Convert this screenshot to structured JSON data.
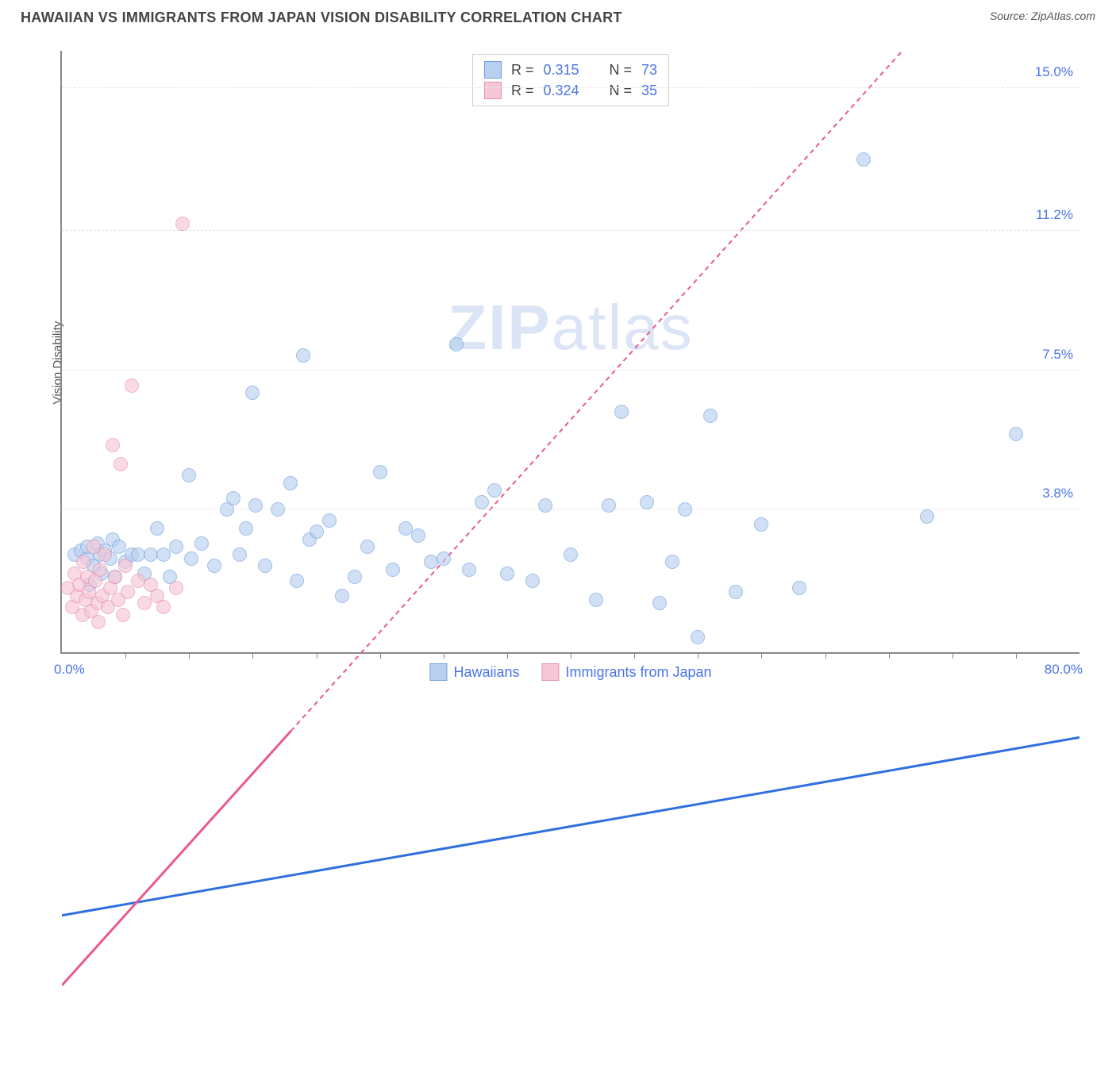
{
  "title": "HAWAIIAN VS IMMIGRANTS FROM JAPAN VISION DISABILITY CORRELATION CHART",
  "source_prefix": "Source: ",
  "source_name": "ZipAtlas.com",
  "y_axis_label": "Vision Disability",
  "watermark_bold": "ZIP",
  "watermark_rest": "atlas",
  "chart": {
    "type": "scatter",
    "background_color": "#ffffff",
    "grid_color": "#e5e5e5",
    "axis_color": "#888888",
    "xlim": [
      0,
      80
    ],
    "ylim": [
      0,
      16
    ],
    "x_range_labels": [
      "0.0%",
      "80.0%"
    ],
    "y_ticks": [
      {
        "v": 3.8,
        "label": "3.8%"
      },
      {
        "v": 7.5,
        "label": "7.5%"
      },
      {
        "v": 11.2,
        "label": "11.2%"
      },
      {
        "v": 15.0,
        "label": "15.0%"
      }
    ],
    "x_minor_ticks": [
      5,
      10,
      15,
      20,
      25,
      30,
      35,
      40,
      45,
      50,
      55,
      60,
      65,
      70,
      75
    ],
    "y_label_color": "#4a74e8",
    "label_fontsize": 17,
    "marker_radius": 9,
    "marker_stroke_width": 1.5,
    "series": [
      {
        "name": "Hawaiians",
        "fill": "#b9d0f0",
        "stroke": "#6f9fde",
        "fill_opacity": 0.65,
        "R": "0.315",
        "N": "73",
        "trend": {
          "x1": 0,
          "y1": 2.4,
          "x2": 80,
          "y2": 5.2,
          "extend_x2": 80,
          "extend_y2": 5.2,
          "color": "#2f6fe0",
          "width": 3,
          "dash": "none"
        },
        "points": [
          [
            1,
            2.6
          ],
          [
            1.5,
            2.7
          ],
          [
            2,
            2.5
          ],
          [
            2,
            2.8
          ],
          [
            2.2,
            1.8
          ],
          [
            2.5,
            2.3
          ],
          [
            2.8,
            2.9
          ],
          [
            3,
            2.6
          ],
          [
            3.1,
            2.1
          ],
          [
            3.4,
            2.7
          ],
          [
            3.8,
            2.5
          ],
          [
            4,
            3.0
          ],
          [
            4.2,
            2.0
          ],
          [
            4.5,
            2.8
          ],
          [
            5,
            2.4
          ],
          [
            5.5,
            2.6
          ],
          [
            6,
            2.6
          ],
          [
            6.5,
            2.1
          ],
          [
            7,
            2.6
          ],
          [
            7.5,
            3.3
          ],
          [
            8,
            2.6
          ],
          [
            8.5,
            2.0
          ],
          [
            9,
            2.8
          ],
          [
            10,
            4.7
          ],
          [
            10.2,
            2.5
          ],
          [
            11,
            2.9
          ],
          [
            12,
            2.3
          ],
          [
            13,
            3.8
          ],
          [
            13.5,
            4.1
          ],
          [
            14,
            2.6
          ],
          [
            14.5,
            3.3
          ],
          [
            15,
            6.9
          ],
          [
            15.2,
            3.9
          ],
          [
            16,
            2.3
          ],
          [
            17,
            3.8
          ],
          [
            18,
            4.5
          ],
          [
            18.5,
            1.9
          ],
          [
            19,
            7.9
          ],
          [
            19.5,
            3.0
          ],
          [
            20,
            3.2
          ],
          [
            21,
            3.5
          ],
          [
            22,
            1.5
          ],
          [
            23,
            2.0
          ],
          [
            24,
            2.8
          ],
          [
            25,
            4.8
          ],
          [
            26,
            2.2
          ],
          [
            27,
            3.3
          ],
          [
            28,
            3.1
          ],
          [
            29,
            2.4
          ],
          [
            30,
            2.5
          ],
          [
            31,
            8.2
          ],
          [
            32,
            2.2
          ],
          [
            33,
            4.0
          ],
          [
            34,
            4.3
          ],
          [
            35,
            2.1
          ],
          [
            37,
            1.9
          ],
          [
            38,
            3.9
          ],
          [
            40,
            2.6
          ],
          [
            42,
            1.4
          ],
          [
            43,
            3.9
          ],
          [
            44,
            6.4
          ],
          [
            46,
            4.0
          ],
          [
            47,
            1.3
          ],
          [
            48,
            2.4
          ],
          [
            49,
            3.8
          ],
          [
            50,
            0.4
          ],
          [
            51,
            6.3
          ],
          [
            53,
            1.6
          ],
          [
            55,
            3.4
          ],
          [
            58,
            1.7
          ],
          [
            63,
            13.1
          ],
          [
            68,
            3.6
          ],
          [
            75,
            5.8
          ]
        ]
      },
      {
        "name": "Immigrants from Japan",
        "fill": "#f6c7d5",
        "stroke": "#e88fad",
        "fill_opacity": 0.65,
        "R": "0.324",
        "N": "35",
        "trend": {
          "x1": 0,
          "y1": 1.3,
          "x2": 18,
          "y2": 5.3,
          "extend_x2": 80,
          "extend_y2": 19.1,
          "color": "#e85b8a",
          "width": 3,
          "dash": "6,5"
        },
        "points": [
          [
            0.5,
            1.7
          ],
          [
            0.8,
            1.2
          ],
          [
            1,
            2.1
          ],
          [
            1.2,
            1.5
          ],
          [
            1.4,
            1.8
          ],
          [
            1.6,
            1.0
          ],
          [
            1.7,
            2.4
          ],
          [
            1.9,
            1.4
          ],
          [
            2,
            2.0
          ],
          [
            2.1,
            1.6
          ],
          [
            2.3,
            1.1
          ],
          [
            2.5,
            2.8
          ],
          [
            2.6,
            1.9
          ],
          [
            2.8,
            1.3
          ],
          [
            2.9,
            0.8
          ],
          [
            3,
            2.2
          ],
          [
            3.2,
            1.5
          ],
          [
            3.4,
            2.6
          ],
          [
            3.6,
            1.2
          ],
          [
            3.8,
            1.7
          ],
          [
            4,
            5.5
          ],
          [
            4.2,
            2.0
          ],
          [
            4.4,
            1.4
          ],
          [
            4.6,
            5.0
          ],
          [
            4.8,
            1.0
          ],
          [
            5,
            2.3
          ],
          [
            5.2,
            1.6
          ],
          [
            5.5,
            7.1
          ],
          [
            6,
            1.9
          ],
          [
            6.5,
            1.3
          ],
          [
            7,
            1.8
          ],
          [
            7.5,
            1.5
          ],
          [
            8,
            1.2
          ],
          [
            9,
            1.7
          ],
          [
            9.5,
            11.4
          ]
        ]
      }
    ]
  },
  "stats_labels": {
    "R": "R  =",
    "N": "N  ="
  },
  "legend_labels": [
    "Hawaiians",
    "Immigrants from Japan"
  ]
}
